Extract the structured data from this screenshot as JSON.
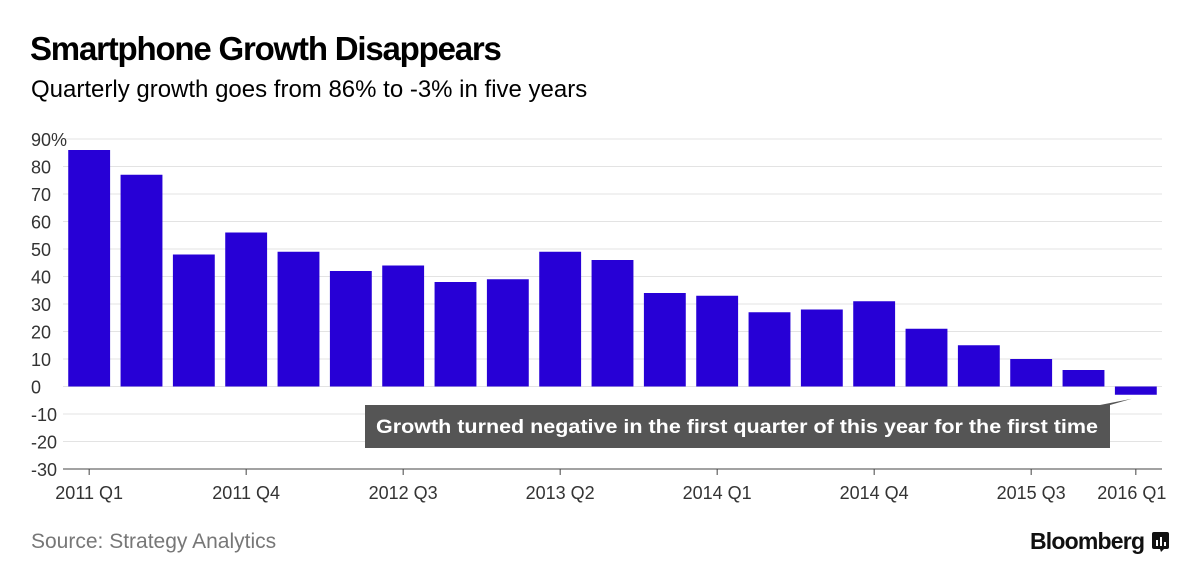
{
  "header": {
    "title": "Smartphone Growth Disappears",
    "subtitle": "Quarterly growth goes from 86% to -3% in five years"
  },
  "footer": {
    "source": "Source: Strategy Analytics",
    "brand": "Bloomberg",
    "brand_icon": "bloomberg-chart-icon"
  },
  "colors": {
    "bar": "#2700d6",
    "grid": "#e3e3e3",
    "annotation_bg": "#555555",
    "annotation_text": "#ffffff"
  },
  "chart_data": {
    "type": "bar",
    "title": "Smartphone Growth Disappears",
    "subtitle": "Quarterly growth goes from 86% to -3% in five years",
    "xlabel": "",
    "ylabel": "",
    "categories": [
      "2011 Q1",
      "2011 Q2",
      "2011 Q3",
      "2011 Q4",
      "2012 Q1",
      "2012 Q2",
      "2012 Q3",
      "2012 Q4",
      "2013 Q1",
      "2013 Q2",
      "2013 Q3",
      "2013 Q4",
      "2014 Q1",
      "2014 Q2",
      "2014 Q3",
      "2014 Q4",
      "2015 Q1",
      "2015 Q2",
      "2015 Q3",
      "2015 Q4",
      "2016 Q1"
    ],
    "values": [
      86,
      77,
      48,
      56,
      49,
      42,
      44,
      38,
      39,
      49,
      46,
      34,
      33,
      27,
      28,
      31,
      21,
      15,
      10,
      6,
      -3
    ],
    "x_tick_labels": [
      "2011 Q1",
      "2011 Q4",
      "2012 Q3",
      "2013 Q2",
      "2014 Q1",
      "2014 Q4",
      "2015 Q3",
      "2016 Q1"
    ],
    "y_tick_labels": [
      "90%",
      "80",
      "70",
      "60",
      "50",
      "40",
      "30",
      "20",
      "10",
      "0",
      "-10",
      "-20",
      "-30"
    ],
    "y_ticks": [
      90,
      80,
      70,
      60,
      50,
      40,
      30,
      20,
      10,
      0,
      -10,
      -20,
      -30
    ],
    "ylim": [
      -30,
      90
    ],
    "grid": true,
    "annotation": {
      "text": "Growth turned negative in the first quarter of this year for the first time",
      "target": "2016 Q1"
    }
  }
}
